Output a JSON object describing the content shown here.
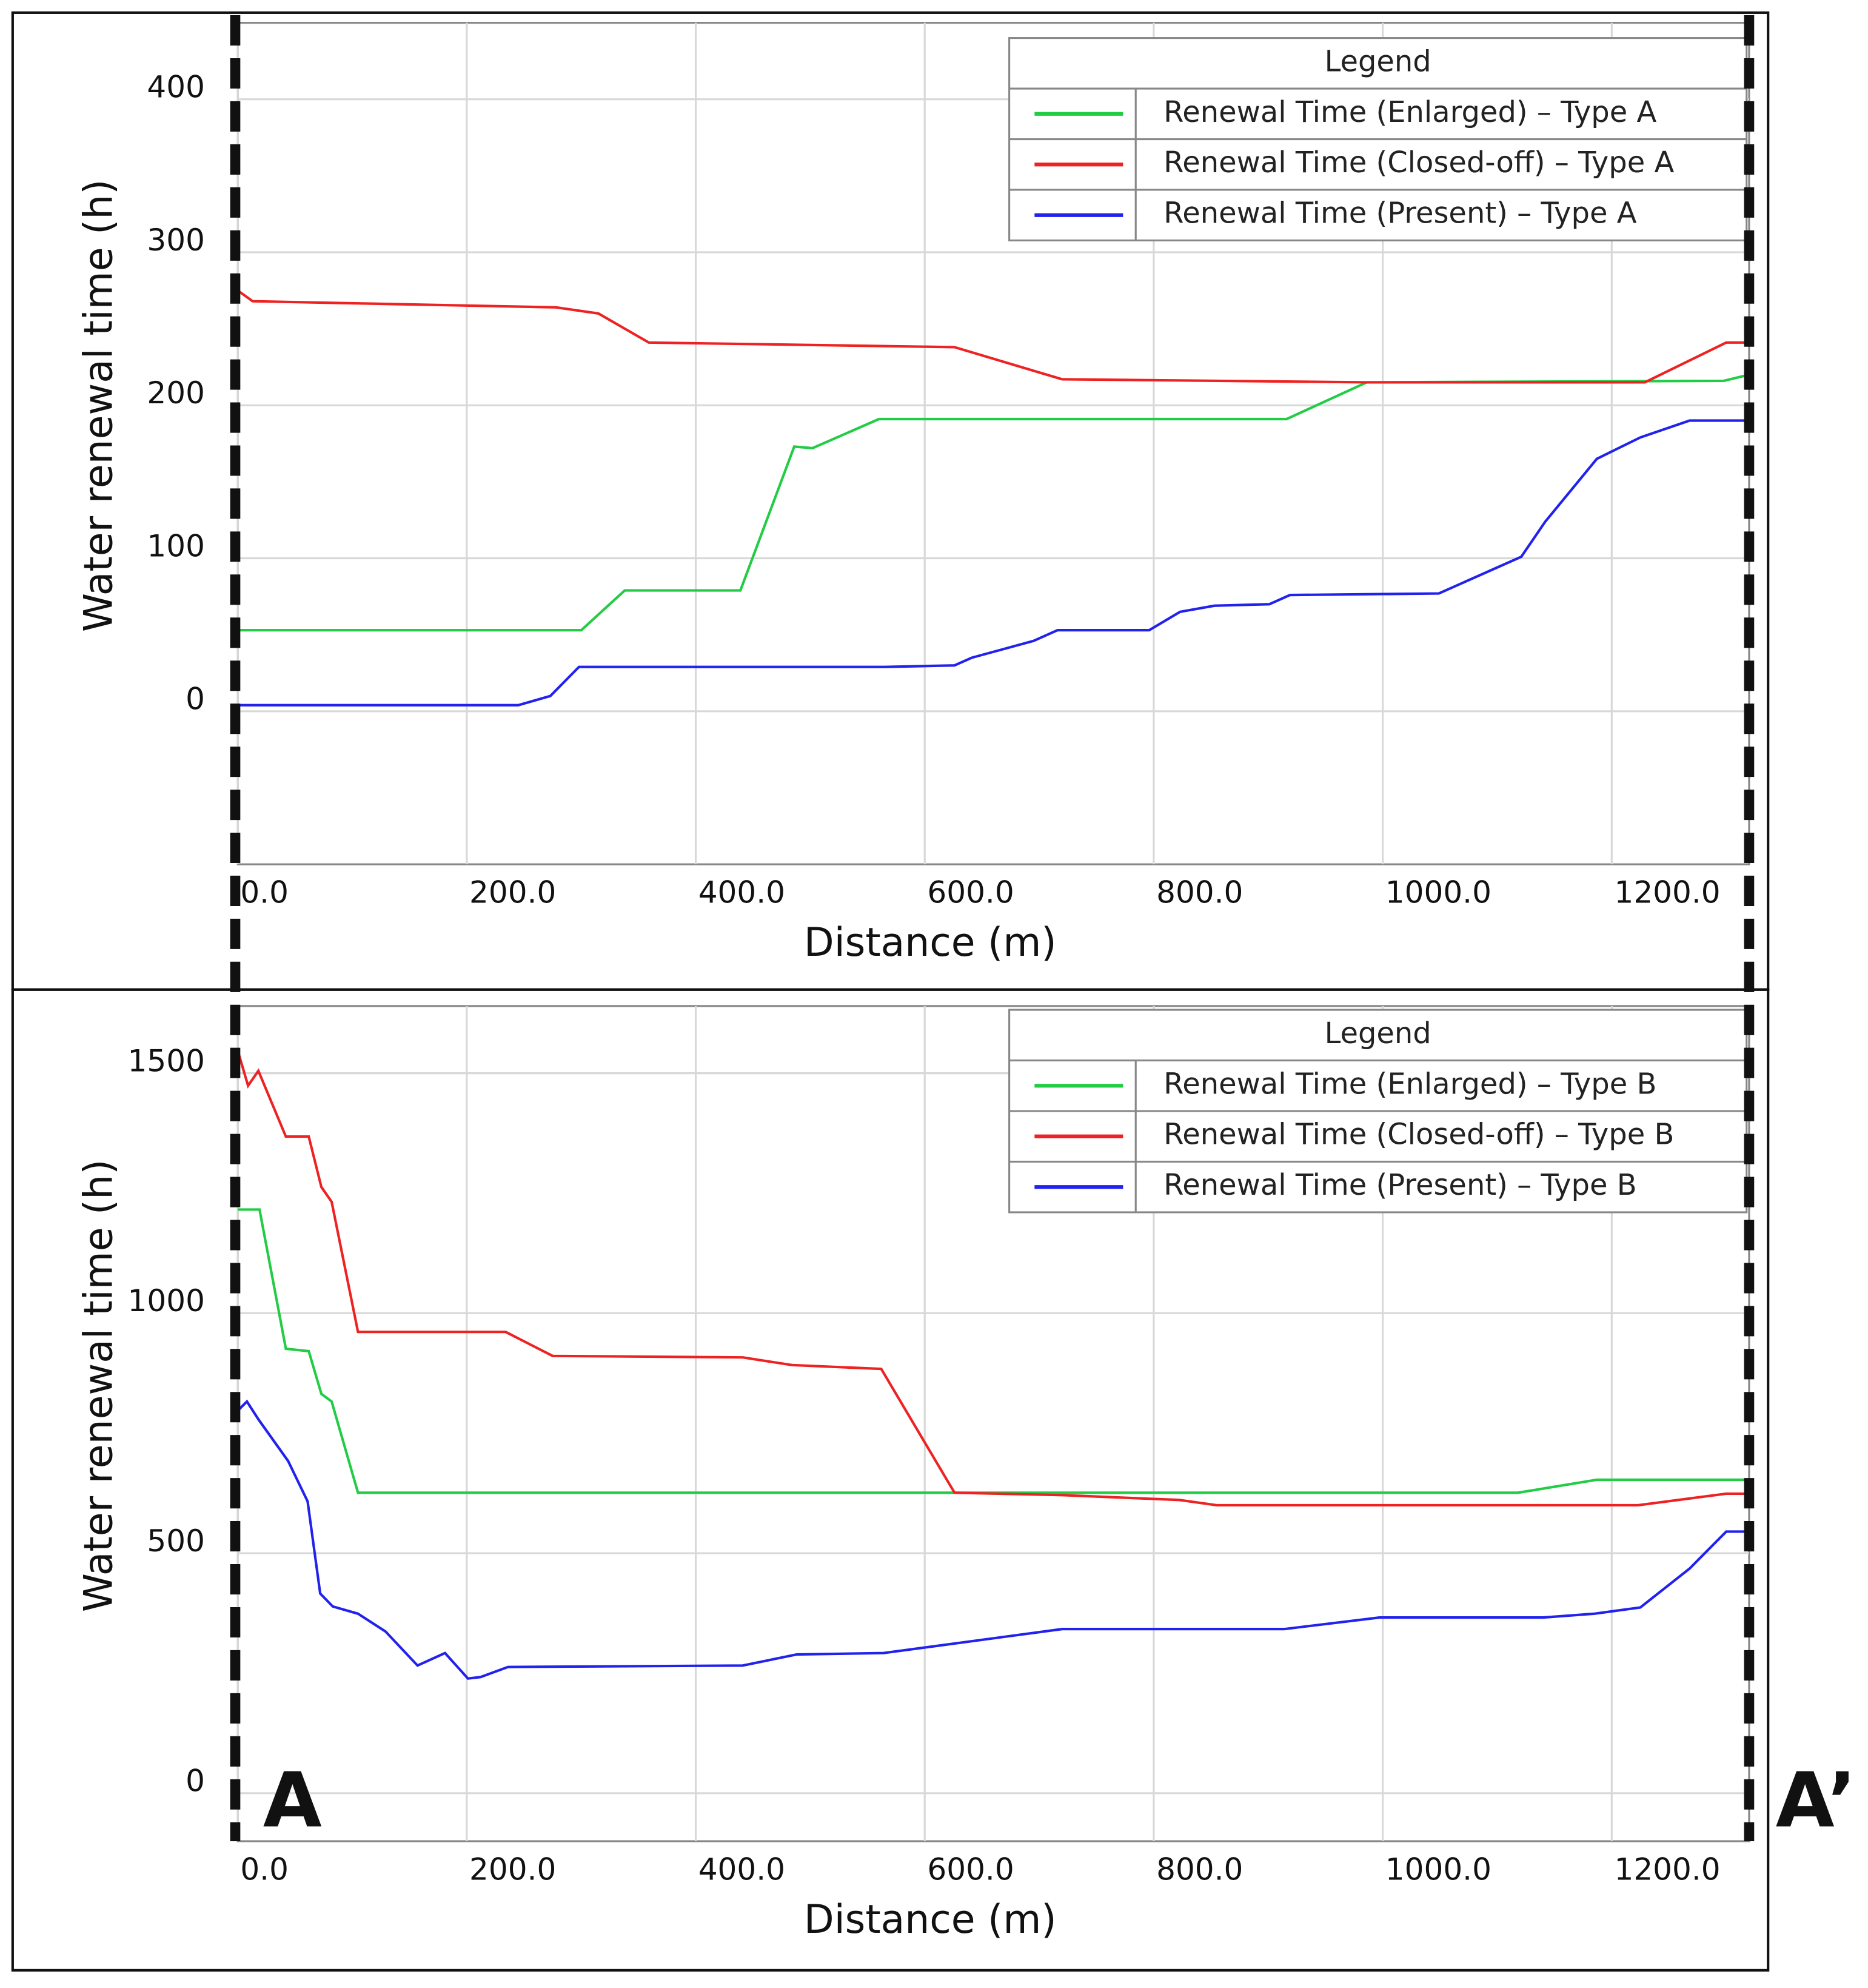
{
  "chart_data": [
    {
      "type": "line",
      "xlabel": "Distance (m)",
      "ylabel": "Water renewal time (h)",
      "legend_title": "Legend",
      "xlim": [
        0,
        1320
      ],
      "ylim": [
        -100,
        450
      ],
      "xticks": [
        {
          "value": 0,
          "label": "0.0"
        },
        {
          "value": 200,
          "label": "200.0"
        },
        {
          "value": 400,
          "label": "400.0"
        },
        {
          "value": 600,
          "label": "600.0"
        },
        {
          "value": 800,
          "label": "800.0"
        },
        {
          "value": 1000,
          "label": "1000.0"
        },
        {
          "value": 1200,
          "label": "1200.0"
        }
      ],
      "yticks": [
        0,
        100,
        200,
        300,
        400
      ],
      "grid": true,
      "legend": "upper right",
      "series": [
        {
          "name": "Renewal Time (Enlarged) – Type A",
          "color": "#22cc44",
          "x": [
            0,
            300,
            338,
            439,
            486,
            502,
            560,
            916,
            986,
            1298,
            1320
          ],
          "values": [
            53,
            53,
            79,
            79,
            173,
            172,
            191,
            191,
            215,
            216,
            220
          ]
        },
        {
          "name": "Renewal Time (Closed-off) – Type A",
          "color": "#ee2222",
          "x": [
            0,
            13,
            278,
            315,
            359,
            626,
            720,
            986,
            1229,
            1300,
            1320
          ],
          "values": [
            275,
            268,
            264,
            260,
            241,
            238,
            217,
            215,
            215,
            241,
            241
          ]
        },
        {
          "name": "Renewal Time (Present) – Type A",
          "color": "#2222ee",
          "x": [
            0,
            245,
            273,
            298,
            565,
            626,
            641,
            695,
            716,
            796,
            823,
            853,
            901,
            919,
            1049,
            1121,
            1142,
            1187,
            1225,
            1268,
            1320
          ],
          "values": [
            4,
            4,
            10,
            29,
            29,
            30,
            35,
            46,
            53,
            53,
            65,
            69,
            70,
            76,
            77,
            101,
            124,
            165,
            179,
            190,
            190
          ]
        }
      ]
    },
    {
      "type": "line",
      "xlabel": "Distance (m)",
      "ylabel": "Water renewal time (h)",
      "legend_title": "Legend",
      "xlim": [
        0,
        1320
      ],
      "ylim": [
        -100,
        1640
      ],
      "xticks": [
        {
          "value": 0,
          "label": "0.0"
        },
        {
          "value": 200,
          "label": "200.0"
        },
        {
          "value": 400,
          "label": "400.0"
        },
        {
          "value": 600,
          "label": "600.0"
        },
        {
          "value": 800,
          "label": "800.0"
        },
        {
          "value": 1000,
          "label": "1000.0"
        },
        {
          "value": 1200,
          "label": "1200.0"
        }
      ],
      "yticks": [
        0,
        500,
        1000,
        1500
      ],
      "grid": true,
      "legend": "upper right",
      "annotations": [
        "A",
        "A’"
      ],
      "series": [
        {
          "name": "Renewal Time (Enlarged) – Type B",
          "color": "#22cc44",
          "x": [
            0,
            19,
            42,
            62,
            73,
            82,
            105,
            1118,
            1187,
            1320
          ],
          "values": [
            1216,
            1216,
            926,
            921,
            832,
            816,
            626,
            626,
            653,
            653
          ]
        },
        {
          "name": "Renewal Time (Closed-off) – Type B",
          "color": "#ee2222",
          "x": [
            0,
            9,
            18,
            42,
            62,
            73,
            82,
            105,
            234,
            275,
            441,
            484,
            562,
            626,
            720,
            822,
            855,
            1223,
            1300,
            1320
          ],
          "values": [
            1547,
            1474,
            1505,
            1368,
            1368,
            1263,
            1232,
            961,
            961,
            911,
            908,
            892,
            884,
            626,
            621,
            611,
            600,
            600,
            624,
            624
          ]
        },
        {
          "name": "Renewal Time (Present) – Type B",
          "color": "#2222ee",
          "x": [
            0,
            8,
            18,
            44,
            61,
            72,
            83,
            105,
            129,
            157,
            181,
            201,
            212,
            236,
            441,
            488,
            564,
            720,
            914,
            997,
            1140,
            1185,
            1225,
            1268,
            1300,
            1320
          ],
          "values": [
            797,
            816,
            779,
            692,
            608,
            416,
            389,
            374,
            337,
            266,
            292,
            239,
            242,
            263,
            266,
            289,
            292,
            342,
            342,
            366,
            366,
            374,
            387,
            468,
            545,
            545
          ]
        }
      ]
    }
  ]
}
